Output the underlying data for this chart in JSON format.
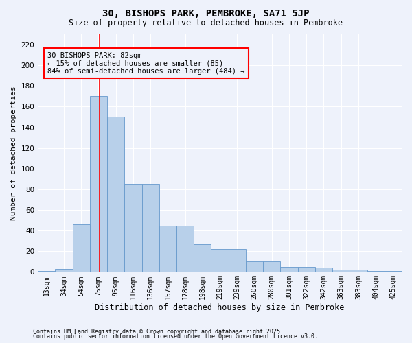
{
  "title1": "30, BISHOPS PARK, PEMBROKE, SA71 5JP",
  "title2": "Size of property relative to detached houses in Pembroke",
  "xlabel": "Distribution of detached houses by size in Pembroke",
  "ylabel": "Number of detached properties",
  "categories": [
    "13sqm",
    "34sqm",
    "54sqm",
    "75sqm",
    "95sqm",
    "116sqm",
    "136sqm",
    "157sqm",
    "178sqm",
    "198sqm",
    "219sqm",
    "239sqm",
    "260sqm",
    "280sqm",
    "301sqm",
    "322sqm",
    "342sqm",
    "363sqm",
    "383sqm",
    "404sqm",
    "425sqm"
  ],
  "values": [
    1,
    3,
    46,
    170,
    150,
    85,
    85,
    45,
    45,
    27,
    22,
    22,
    10,
    10,
    5,
    5,
    4,
    2,
    2,
    1,
    1
  ],
  "bar_color": "#b8d0ea",
  "bar_edge_color": "#6699cc",
  "ylim": [
    0,
    230
  ],
  "yticks": [
    0,
    20,
    40,
    60,
    80,
    100,
    120,
    140,
    160,
    180,
    200,
    220
  ],
  "annotation_text_line1": "30 BISHOPS PARK: 82sqm",
  "annotation_text_line2": "← 15% of detached houses are smaller (85)",
  "annotation_text_line3": "84% of semi-detached houses are larger (484) →",
  "redline_bin_index": 3,
  "footer1": "Contains HM Land Registry data © Crown copyright and database right 2025.",
  "footer2": "Contains public sector information licensed under the Open Government Licence v3.0.",
  "bg_color": "#eef2fb",
  "grid_color": "#ffffff",
  "title1_fontsize": 10,
  "title2_fontsize": 8.5,
  "xlabel_fontsize": 8.5,
  "ylabel_fontsize": 8,
  "tick_fontsize": 7,
  "footer_fontsize": 6,
  "ann_fontsize": 7.5
}
